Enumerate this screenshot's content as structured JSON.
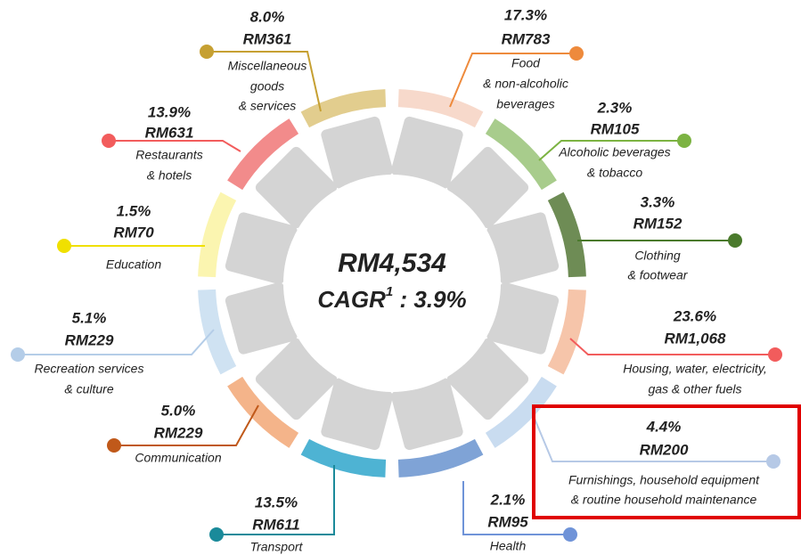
{
  "center": {
    "total": "RM4,534",
    "cagr_label": "CAGR",
    "cagr_note": "1",
    "cagr_value": " : 3.9%"
  },
  "segments": [
    {
      "percent": "17.3%",
      "amount": "RM783",
      "label_lines": [
        "Food",
        "& non-alcoholic",
        "beverages"
      ]
    },
    {
      "percent": "2.3%",
      "amount": "RM105",
      "label_lines": [
        "Alcoholic beverages",
        "& tobacco"
      ]
    },
    {
      "percent": "3.3%",
      "amount": "RM152",
      "label_lines": [
        "Clothing",
        "& footwear"
      ]
    },
    {
      "percent": "23.6%",
      "amount": "RM1,068",
      "label_lines": [
        "Housing, water, electricity,",
        "gas & other fuels"
      ]
    },
    {
      "percent": "4.4%",
      "amount": "RM200",
      "label_lines": [
        "Furnishings, household equipment",
        "& routine household maintenance"
      ]
    },
    {
      "percent": "2.1%",
      "amount": "RM95",
      "label_lines": [
        "Health"
      ]
    },
    {
      "percent": "13.5%",
      "amount": "RM611",
      "label_lines": [
        "Transport"
      ]
    },
    {
      "percent": "5.0%",
      "amount": "RM229",
      "label_lines": [
        "Communication"
      ]
    },
    {
      "percent": "5.1%",
      "amount": "RM229",
      "label_lines": [
        "Recreation services",
        "& culture"
      ]
    },
    {
      "percent": "1.5%",
      "amount": "RM70",
      "label_lines": [
        "Education"
      ]
    },
    {
      "percent": "13.9%",
      "amount": "RM631",
      "label_lines": [
        "Restaurants",
        "& hotels"
      ]
    },
    {
      "percent": "8.0%",
      "amount": "RM361",
      "label_lines": [
        "Miscellaneous",
        "goods",
        "& services"
      ]
    }
  ]
}
